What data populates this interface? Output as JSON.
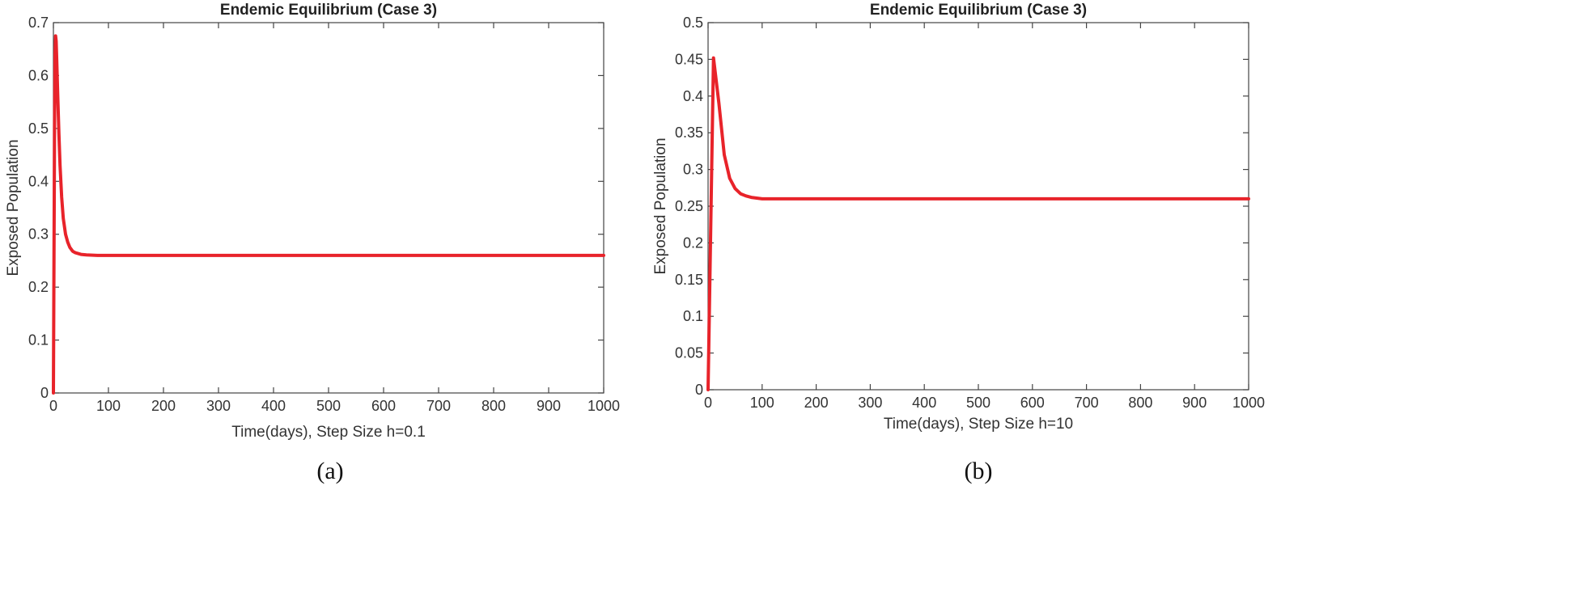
{
  "chart_data": [
    {
      "type": "line",
      "title": "Endemic Equilibrium (Case 3)",
      "xlabel": "Time(days), Step Size h=0.1",
      "ylabel": "Exposed Population",
      "caption": "(a)",
      "xlim": [
        0,
        1000
      ],
      "ylim": [
        0,
        0.7
      ],
      "xticks": [
        0,
        100,
        200,
        300,
        400,
        500,
        600,
        700,
        800,
        900,
        1000
      ],
      "yticks": [
        0,
        0.1,
        0.2,
        0.3,
        0.4,
        0.5,
        0.6,
        0.7
      ],
      "grid": false,
      "line_color": "#e8232a",
      "series": [
        {
          "x": [
            0,
            1,
            2,
            3,
            4,
            5,
            6,
            8,
            10,
            12,
            15,
            18,
            22,
            26,
            30,
            35,
            40,
            50,
            60,
            80,
            100,
            200,
            300,
            400,
            500,
            600,
            700,
            800,
            900,
            1000
          ],
          "values": [
            0,
            0.25,
            0.5,
            0.64,
            0.675,
            0.665,
            0.63,
            0.56,
            0.49,
            0.43,
            0.37,
            0.33,
            0.3,
            0.285,
            0.275,
            0.268,
            0.265,
            0.262,
            0.261,
            0.26,
            0.26,
            0.26,
            0.26,
            0.26,
            0.26,
            0.26,
            0.26,
            0.26,
            0.26,
            0.26
          ]
        }
      ]
    },
    {
      "type": "line",
      "title": "Endemic Equilibrium (Case 3)",
      "xlabel": "Time(days), Step Size h=10",
      "ylabel": "Exposed Population",
      "caption": "(b)",
      "xlim": [
        0,
        1000
      ],
      "ylim": [
        0,
        0.5
      ],
      "xticks": [
        0,
        100,
        200,
        300,
        400,
        500,
        600,
        700,
        800,
        900,
        1000
      ],
      "yticks": [
        0,
        0.05,
        0.1,
        0.15,
        0.2,
        0.25,
        0.3,
        0.35,
        0.4,
        0.45,
        0.5
      ],
      "grid": false,
      "line_color": "#e8232a",
      "series": [
        {
          "x": [
            0,
            10,
            20,
            30,
            40,
            50,
            60,
            70,
            80,
            90,
            100,
            150,
            200,
            300,
            400,
            500,
            600,
            700,
            800,
            900,
            1000
          ],
          "values": [
            0,
            0.452,
            0.39,
            0.32,
            0.288,
            0.274,
            0.267,
            0.264,
            0.262,
            0.261,
            0.26,
            0.26,
            0.26,
            0.26,
            0.26,
            0.26,
            0.26,
            0.26,
            0.26,
            0.26,
            0.26
          ]
        }
      ]
    }
  ]
}
